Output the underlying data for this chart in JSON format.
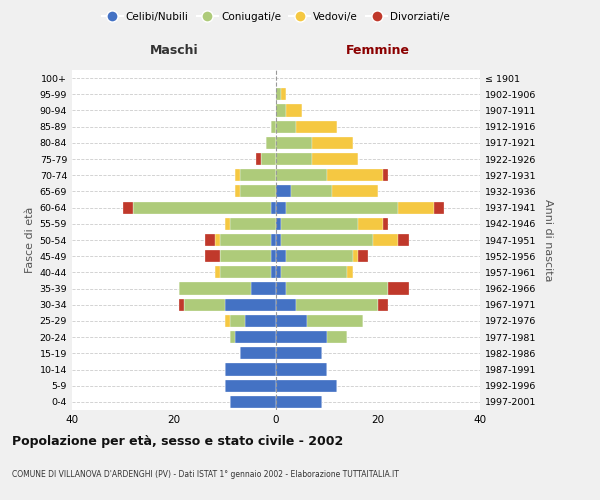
{
  "age_groups": [
    "0-4",
    "5-9",
    "10-14",
    "15-19",
    "20-24",
    "25-29",
    "30-34",
    "35-39",
    "40-44",
    "45-49",
    "50-54",
    "55-59",
    "60-64",
    "65-69",
    "70-74",
    "75-79",
    "80-84",
    "85-89",
    "90-94",
    "95-99",
    "100+"
  ],
  "birth_years": [
    "1997-2001",
    "1992-1996",
    "1987-1991",
    "1982-1986",
    "1977-1981",
    "1972-1976",
    "1967-1971",
    "1962-1966",
    "1957-1961",
    "1952-1956",
    "1947-1951",
    "1942-1946",
    "1937-1941",
    "1932-1936",
    "1927-1931",
    "1922-1926",
    "1917-1921",
    "1912-1916",
    "1907-1911",
    "1902-1906",
    "≤ 1901"
  ],
  "colors": {
    "celibi": "#4472C4",
    "coniugati": "#AECB7A",
    "vedovi": "#F5C842",
    "divorziati": "#C0392B"
  },
  "males": {
    "celibi": [
      9,
      10,
      10,
      7,
      8,
      6,
      10,
      5,
      1,
      1,
      1,
      0,
      1,
      0,
      0,
      0,
      0,
      0,
      0,
      0,
      0
    ],
    "coniugati": [
      0,
      0,
      0,
      0,
      1,
      3,
      8,
      14,
      10,
      10,
      10,
      9,
      27,
      7,
      7,
      3,
      2,
      1,
      0,
      0,
      0
    ],
    "vedovi": [
      0,
      0,
      0,
      0,
      0,
      1,
      0,
      0,
      1,
      0,
      1,
      1,
      0,
      1,
      1,
      0,
      0,
      0,
      0,
      0,
      0
    ],
    "divorziati": [
      0,
      0,
      0,
      0,
      0,
      0,
      1,
      0,
      0,
      3,
      2,
      0,
      2,
      0,
      0,
      1,
      0,
      0,
      0,
      0,
      0
    ]
  },
  "females": {
    "celibi": [
      9,
      12,
      10,
      9,
      10,
      6,
      4,
      2,
      1,
      2,
      1,
      1,
      2,
      3,
      0,
      0,
      0,
      0,
      0,
      0,
      0
    ],
    "coniugati": [
      0,
      0,
      0,
      0,
      4,
      11,
      16,
      20,
      13,
      13,
      18,
      15,
      22,
      8,
      10,
      7,
      7,
      4,
      2,
      1,
      0
    ],
    "vedovi": [
      0,
      0,
      0,
      0,
      0,
      0,
      0,
      0,
      1,
      1,
      5,
      5,
      7,
      9,
      11,
      9,
      8,
      8,
      3,
      1,
      0
    ],
    "divorziati": [
      0,
      0,
      0,
      0,
      0,
      0,
      2,
      4,
      0,
      2,
      2,
      1,
      2,
      0,
      1,
      0,
      0,
      0,
      0,
      0,
      0
    ]
  },
  "title": "Popolazione per età, sesso e stato civile - 2002",
  "subtitle": "COMUNE DI VILLANOVA D'ARDENGHI (PV) - Dati ISTAT 1° gennaio 2002 - Elaborazione TUTTAITALIA.IT",
  "label_maschi": "Maschi",
  "label_femmine": "Femmine",
  "ylabel_left": "Fasce di età",
  "ylabel_right": "Anni di nascita",
  "xlim": 40,
  "legend_labels": [
    "Celibi/Nubili",
    "Coniugati/e",
    "Vedovi/e",
    "Divorziati/e"
  ],
  "bg_color": "#f0f0f0",
  "plot_bg": "#ffffff"
}
